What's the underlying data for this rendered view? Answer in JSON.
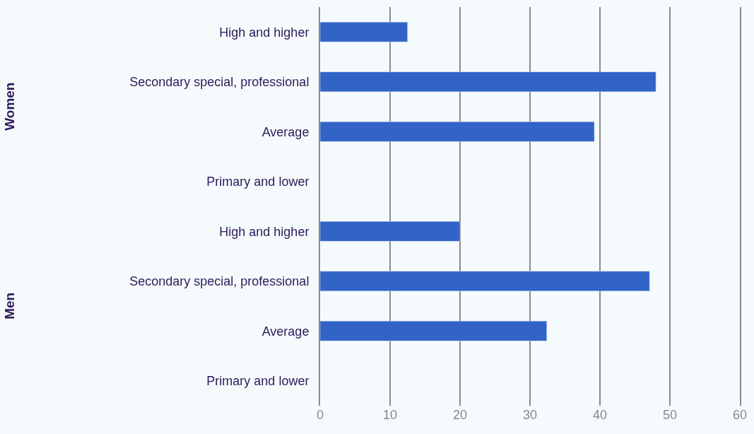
{
  "chart_data": {
    "type": "bar",
    "orientation": "horizontal",
    "categories": [
      "High and higher",
      "Secondary special, professional",
      "Average",
      "Primary and lower",
      "High and higher",
      "Secondary special, professional",
      "Average",
      "Primary and lower"
    ],
    "values": [
      12.5,
      48.0,
      39.2,
      null,
      20.0,
      47.1,
      32.4,
      null
    ],
    "color": "#3264c8",
    "xlim": [
      0,
      60
    ],
    "xticks": [
      0,
      10,
      20,
      30,
      40,
      50,
      60
    ],
    "grid": "x",
    "legend": false,
    "annotations": [
      "Women",
      "Men"
    ]
  }
}
